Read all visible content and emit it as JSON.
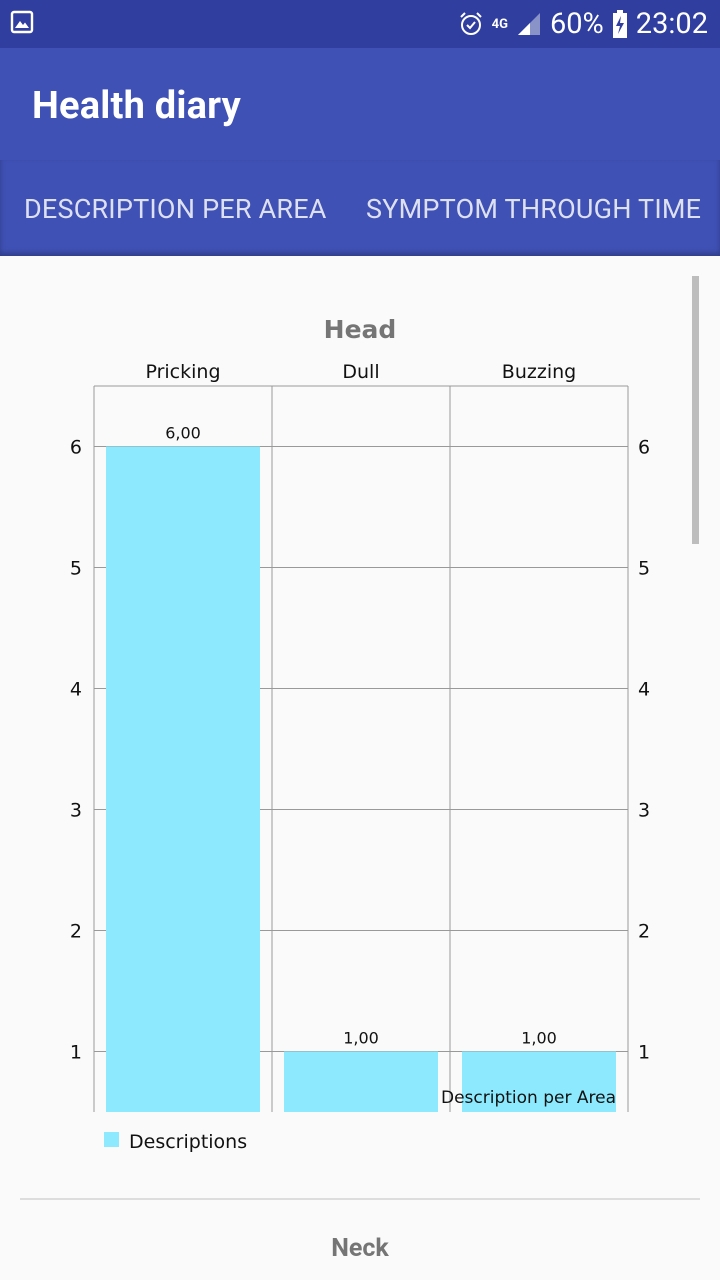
{
  "status_bar": {
    "battery_text": "60%",
    "time": "23:02",
    "network": "4G",
    "icons": [
      "image-icon",
      "alarm-icon",
      "network-4g-icon",
      "signal-icon",
      "battery-charging-icon"
    ]
  },
  "app_bar": {
    "title": "Health diary"
  },
  "tabs": [
    {
      "label": "DESCRIPTION PER AREA"
    },
    {
      "label": "SYMPTOM THROUGH TIME"
    }
  ],
  "chart_data": [
    {
      "type": "bar",
      "title": "Head",
      "categories": [
        "Pricking",
        "Dull",
        "Buzzing"
      ],
      "series": [
        {
          "name": "Descriptions",
          "values": [
            6,
            1,
            1
          ],
          "color": "#8deafe"
        }
      ],
      "value_labels": [
        "6,00",
        "1,00",
        "1,00"
      ],
      "yticks": [
        "1",
        "2",
        "3",
        "4",
        "5",
        "6"
      ],
      "ylim": [
        0.5,
        6.5
      ],
      "grid": true,
      "legend": "bottom-left",
      "description": "Description per Area"
    }
  ],
  "next_chart_title": "Neck"
}
